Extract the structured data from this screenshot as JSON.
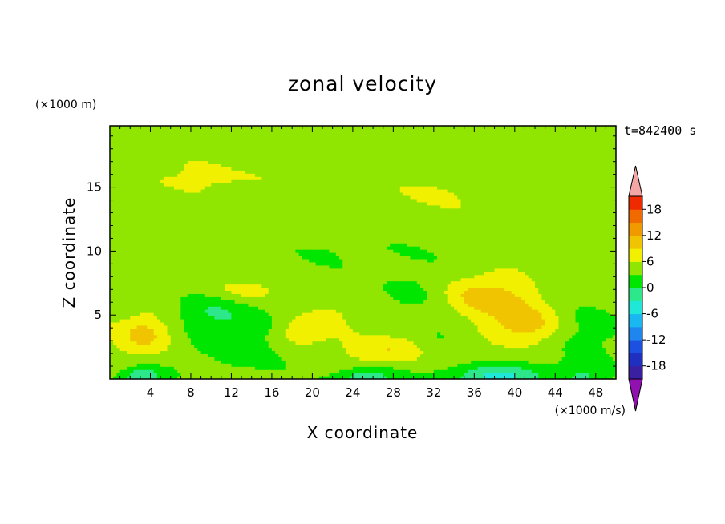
{
  "chart_data": {
    "type": "heatmap",
    "title": "zonal velocity",
    "xlabel": "X coordinate",
    "ylabel": "Z coordinate",
    "x_unit": "(×1000 m/s)",
    "y_unit": "(×1000 m)",
    "time_label": "t=842400 s",
    "xlim": [
      0,
      50
    ],
    "ylim": [
      0,
      19.8
    ],
    "x_ticks": [
      4,
      8,
      12,
      16,
      20,
      24,
      28,
      32,
      36,
      40,
      44,
      48
    ],
    "y_ticks": [
      5,
      10,
      15
    ],
    "x_minor_step": 1,
    "y_minor_step": 1,
    "colorbar": {
      "levels": [
        -21,
        -18,
        -15,
        -12,
        -9,
        -6,
        -3,
        0,
        3,
        6,
        9,
        12,
        15,
        18,
        21
      ],
      "labels": [
        18,
        12,
        6,
        0,
        -6,
        -12,
        -18
      ],
      "colors": [
        "#6a1bab",
        "#3a1fa0",
        "#1f2fc0",
        "#1b50e0",
        "#1f86f0",
        "#19b8f0",
        "#1fe8d8",
        "#2de88a",
        "#00e600",
        "#90e600",
        "#f0f000",
        "#f0c400",
        "#f09a00",
        "#f06a00",
        "#f02a00",
        "#e00000",
        "#f4a5a5"
      ],
      "under_color": "#9010b0",
      "over_color": "#f4a5a5"
    },
    "background_value": 1.5,
    "features": [
      {
        "x": 3.5,
        "z": 3.6,
        "sx": 1.9,
        "sz": 1.1,
        "amp": 6.0
      },
      {
        "x": 12.8,
        "z": 6.9,
        "sx": 2.8,
        "sz": 0.7,
        "amp": 3.5
      },
      {
        "x": 18.5,
        "z": 3.6,
        "sx": 2.0,
        "sz": 0.8,
        "amp": 4.2
      },
      {
        "x": 23.5,
        "z": 5.6,
        "sx": 2.5,
        "sz": 1.1,
        "amp": 2.0
      },
      {
        "x": 27.5,
        "z": 2.3,
        "sx": 2.8,
        "sz": 0.8,
        "amp": 4.5
      },
      {
        "x": 37.0,
        "z": 6.3,
        "sx": 3.0,
        "sz": 1.2,
        "amp": 6.8
      },
      {
        "x": 41.0,
        "z": 4.2,
        "sx": 2.6,
        "sz": 1.1,
        "amp": 5.8
      },
      {
        "x": 9.5,
        "z": 5.4,
        "sx": 2.4,
        "sz": 1.2,
        "amp": -4.0
      },
      {
        "x": 13.0,
        "z": 3.0,
        "sx": 3.2,
        "sz": 2.0,
        "amp": -3.5
      },
      {
        "x": 29.5,
        "z": 6.8,
        "sx": 2.3,
        "sz": 1.0,
        "amp": -3.0
      },
      {
        "x": 33.0,
        "z": 4.0,
        "sx": 2.0,
        "sz": 1.5,
        "amp": -2.5
      },
      {
        "x": 3.2,
        "z": 0.15,
        "sx": 1.6,
        "sz": 0.6,
        "amp": -8.0
      },
      {
        "x": 25.5,
        "z": 0.15,
        "sx": 2.2,
        "sz": 0.6,
        "amp": -7.0
      },
      {
        "x": 38.0,
        "z": 0.2,
        "sx": 3.0,
        "sz": 0.7,
        "amp": -9.0
      },
      {
        "x": 47.0,
        "z": 0.3,
        "sx": 2.0,
        "sz": 0.8,
        "amp": -5.0
      },
      {
        "x": 46.5,
        "z": 3.5,
        "sx": 2.5,
        "sz": 1.6,
        "amp": -3.0
      },
      {
        "x": 25.0,
        "z": 10.0,
        "sx": 6.0,
        "sz": 1.0,
        "amp": -1.6
      },
      {
        "x": 10.0,
        "z": 15.8,
        "sx": 8.0,
        "sz": 1.0,
        "amp": 1.8
      },
      {
        "x": 32.0,
        "z": 14.5,
        "sx": 6.0,
        "sz": 0.9,
        "amp": 1.5
      }
    ]
  }
}
